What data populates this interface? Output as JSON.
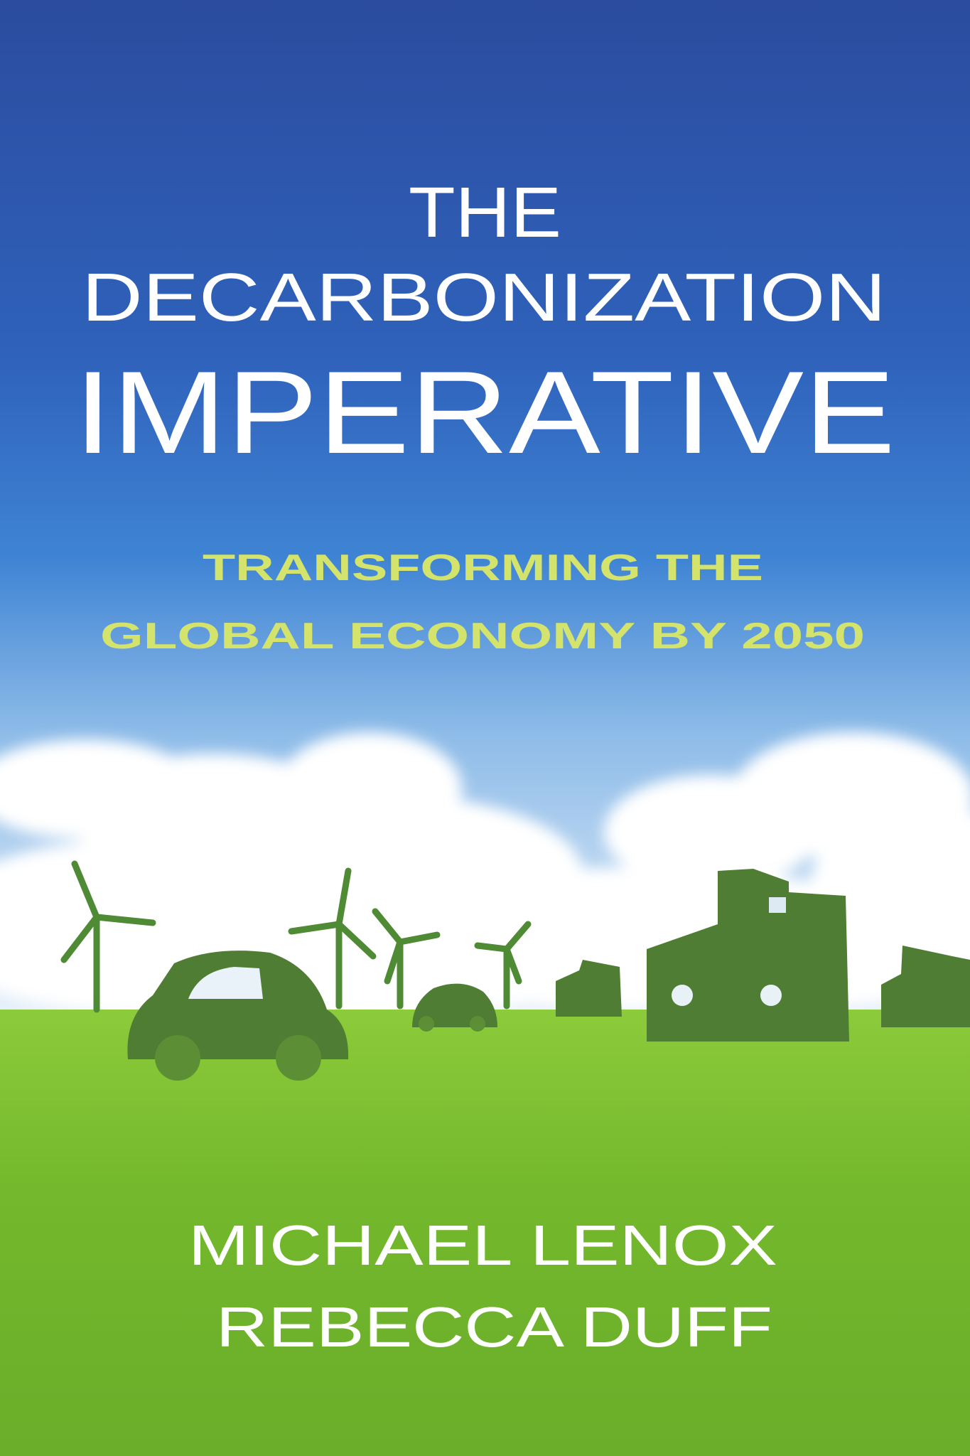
{
  "cover": {
    "title_line1": "THE",
    "title_line2": "DECARBONIZATION",
    "title_line3": "IMPERATIVE",
    "subtitle_line1": "TRANSFORMING THE",
    "subtitle_line2": "GLOBAL ECONOMY BY 2050",
    "author1": "MICHAEL LENOX",
    "author2": "REBECCA DUFF"
  },
  "colors": {
    "sky_top": "#2b4c9f",
    "sky_mid": "#3f84d4",
    "title_text": "#ffffff",
    "subtitle_text": "#d3e36b",
    "grass": "#7dbf31",
    "topiary_green": "#4f7d33"
  },
  "illustration": {
    "icons": [
      "cloud-icon",
      "wind-turbine-icon",
      "topiary-car-icon",
      "topiary-building-icon"
    ]
  }
}
